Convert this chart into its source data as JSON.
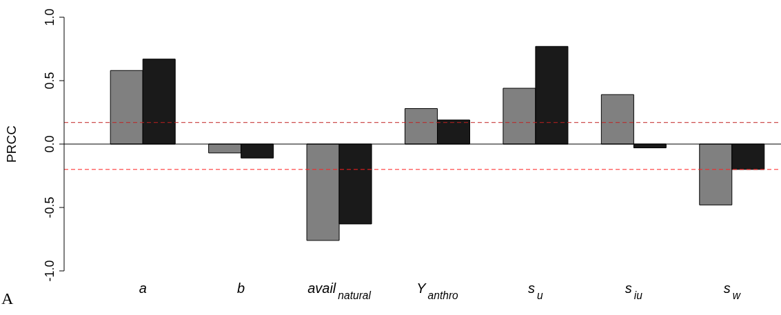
{
  "chart_data": {
    "type": "bar",
    "ylabel": "PRCC",
    "categories": [
      "a",
      "b",
      "avail$_{natural}$",
      "Y$_{anthro}$",
      "s$_{u}$",
      "s$_{iu}$",
      "s$_{w}$"
    ],
    "series": [
      {
        "color": "#808080",
        "values": [
          0.58,
          -0.07,
          -0.76,
          0.28,
          0.44,
          0.39,
          -0.48
        ]
      },
      {
        "color": "#1a1a1a",
        "values": [
          0.67,
          -0.11,
          -0.63,
          0.19,
          0.77,
          -0.03,
          -0.2
        ]
      }
    ],
    "ylim": [
      -1,
      1
    ],
    "yticks": [
      {
        "value": -1,
        "label": "-1.0"
      },
      {
        "value": -0.5,
        "label": "-0.5"
      },
      {
        "value": 0,
        "label": "0.0"
      },
      {
        "value": 0.5,
        "label": "0.5"
      },
      {
        "value": 1,
        "label": "1.0"
      }
    ],
    "ref_lines": [
      {
        "axis": "y",
        "value": 0,
        "color": "#000000",
        "line_style": "solid"
      },
      {
        "axis": "y",
        "value": 0.17,
        "color": "#c02020",
        "line_style": "dashed"
      },
      {
        "axis": "y",
        "value": -0.2,
        "color": "#ff2020",
        "line_style": "dashed"
      }
    ],
    "grid": false,
    "legend": false,
    "annotations": [
      "A"
    ]
  }
}
